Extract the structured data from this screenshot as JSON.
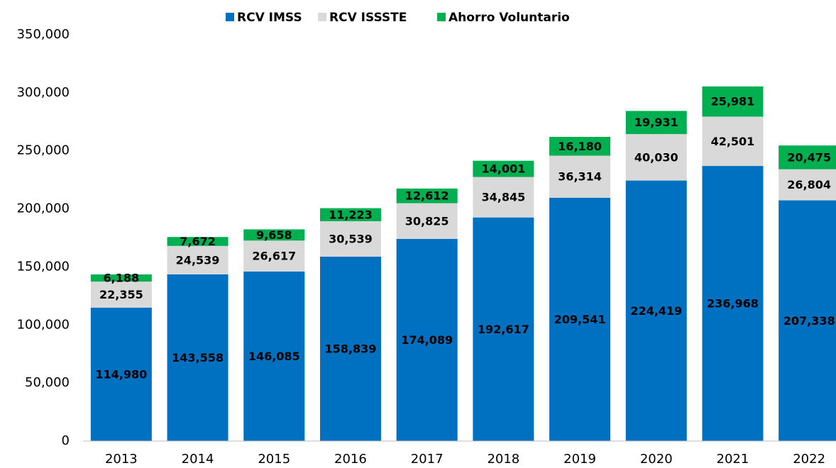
{
  "chart_data": {
    "type": "stacked_bar",
    "categories": [
      "2013",
      "2014",
      "2015",
      "2016",
      "2017",
      "2018",
      "2019",
      "2020",
      "2021",
      "2022"
    ],
    "series": [
      {
        "name": "RCV IMSS",
        "color": "#0070c0",
        "values": [
          114980,
          143558,
          146085,
          158839,
          174089,
          192617,
          209541,
          224419,
          236968,
          207338
        ],
        "value_labels": [
          "114,980",
          "143,558",
          "146,085",
          "158,839",
          "174,089",
          "192,617",
          "209,541",
          "224,419",
          "236,968",
          "207,338"
        ]
      },
      {
        "name": "RCV ISSSTE",
        "color": "#d9d9d9",
        "values": [
          22355,
          24539,
          26617,
          30539,
          30825,
          34845,
          36314,
          40030,
          42501,
          26804
        ],
        "value_labels": [
          "22,355",
          "24,539",
          "26,617",
          "30,539",
          "30,825",
          "34,845",
          "36,314",
          "40,030",
          "42,501",
          "26,804"
        ]
      },
      {
        "name": "Ahorro Voluntario",
        "color": "#00b050",
        "values": [
          6188,
          7672,
          9658,
          11223,
          12612,
          14001,
          16180,
          19931,
          25981,
          20475
        ],
        "value_labels": [
          "6,188",
          "7,672",
          "9,658",
          "11,223",
          "12,612",
          "14,001",
          "16,180",
          "19,931",
          "25,981",
          "20,475"
        ]
      }
    ],
    "ylim": [
      0,
      350000
    ],
    "yticks": [
      0,
      {
        "value": 50000,
        "label": "50,000"
      },
      {
        "value": 100000,
        "label": "100,000"
      },
      {
        "value": 150000,
        "label": "150,000"
      },
      {
        "value": 200000,
        "label": "200,000"
      },
      {
        "value": 250000,
        "label": "250,000"
      },
      {
        "value": 300000,
        "label": "300,000"
      },
      {
        "value": 350000,
        "label": "350,000"
      }
    ],
    "legend": "top"
  }
}
